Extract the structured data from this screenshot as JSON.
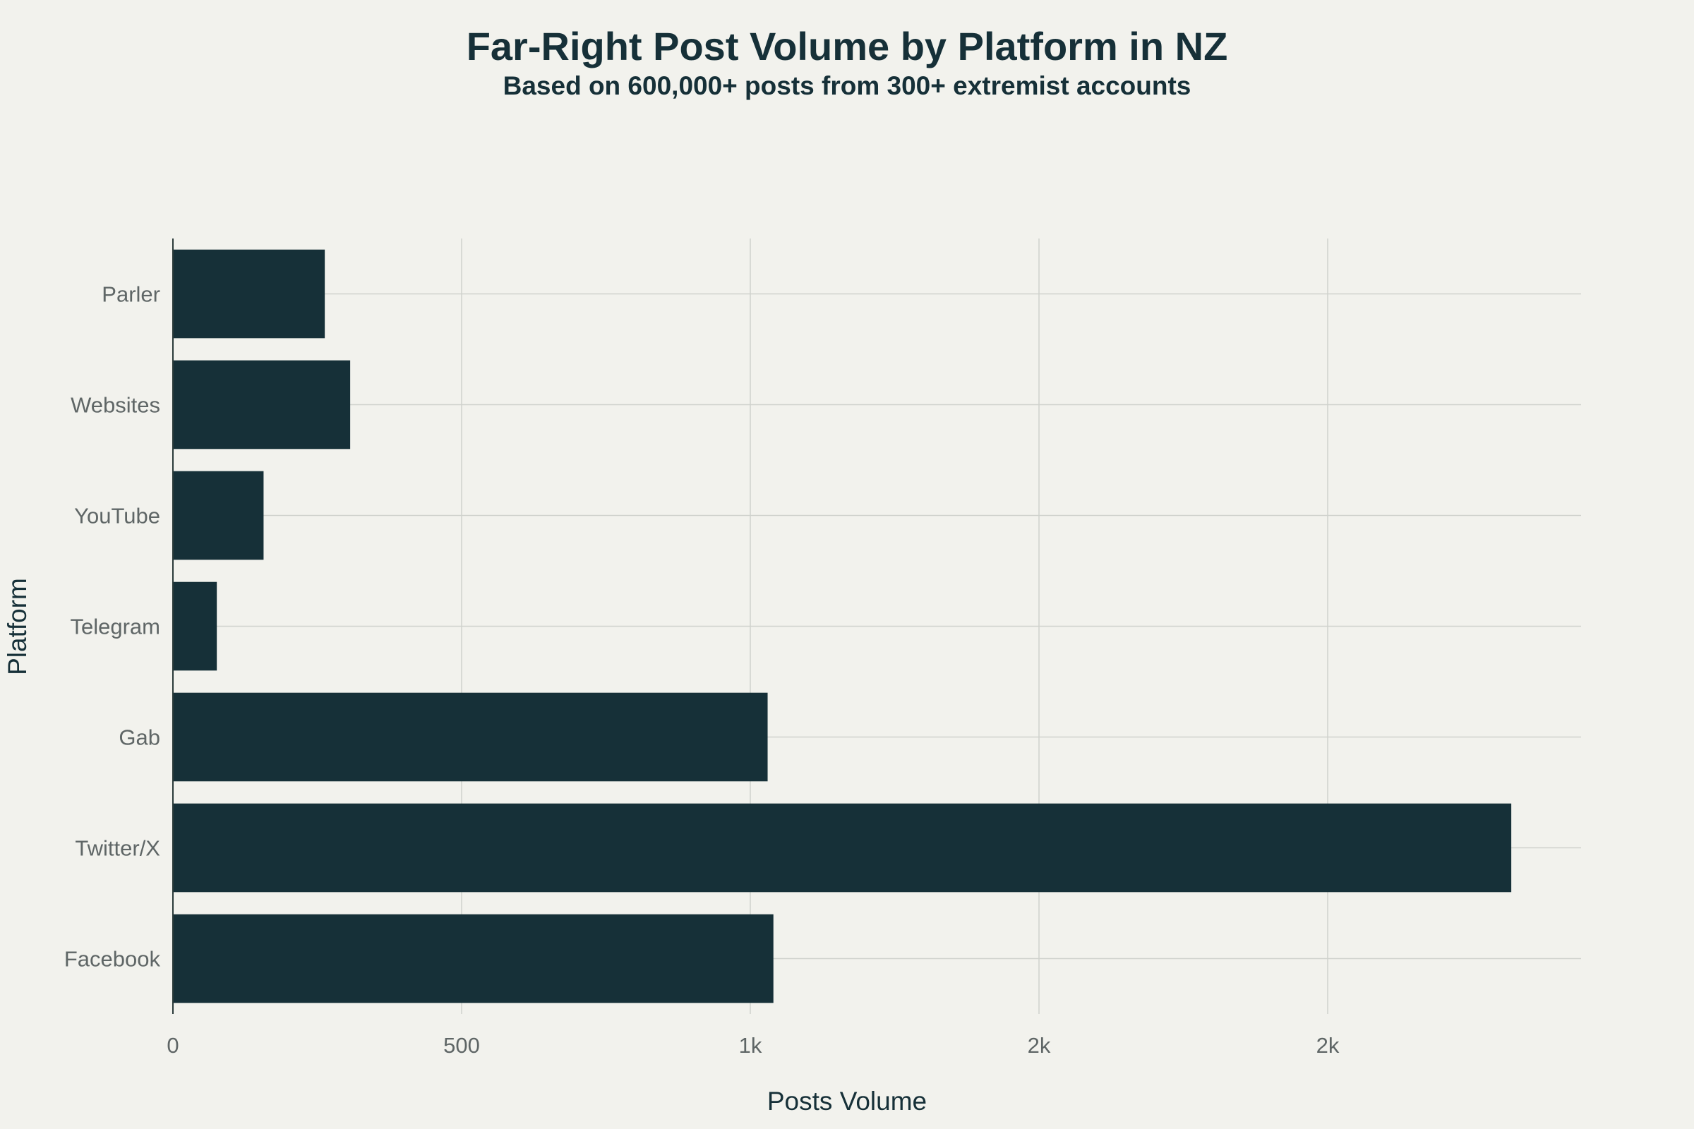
{
  "chart_data": {
    "type": "bar",
    "orientation": "horizontal",
    "title": "Far-Right Post Volume by Platform in NZ",
    "subtitle": "Based on 600,000+ posts from 300+ extremist accounts",
    "xlabel": "Posts Volume",
    "ylabel": "Platform",
    "categories": [
      "Facebook",
      "Twitter/X",
      "Gab",
      "Telegram",
      "YouTube",
      "Websites",
      "Parler"
    ],
    "values": [
      1040,
      2318,
      1030,
      76,
      157,
      307,
      263
    ],
    "x_ticks": [
      {
        "value": 0,
        "label": "0"
      },
      {
        "value": 500,
        "label": "500"
      },
      {
        "value": 1000,
        "label": "1k"
      },
      {
        "value": 1500,
        "label": "2k"
      },
      {
        "value": 2000,
        "label": "2k"
      }
    ],
    "xlim": [
      0,
      2440
    ],
    "grid": true,
    "legend": "none",
    "colors": {
      "bar": "#163038",
      "background": "#f2f2ed",
      "grid": "#cfd2cd",
      "tick_text": "#5f6666",
      "title_text": "#163038"
    }
  }
}
